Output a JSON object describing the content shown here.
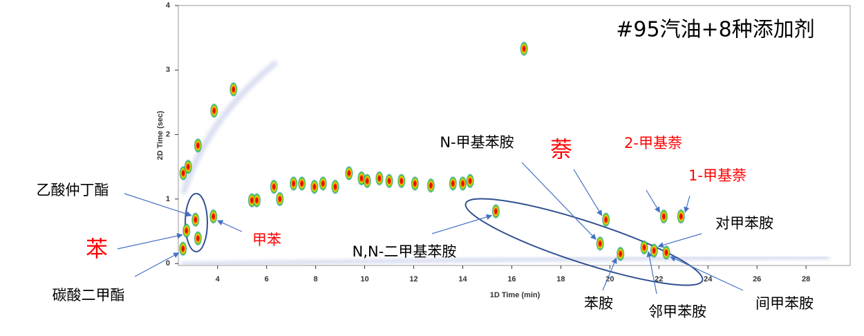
{
  "chart_data": {
    "type": "scatter",
    "title": "#95汽油+8种添加剂",
    "x_label": "1D Time (min)",
    "y_label": "2D Time (sec)",
    "xlim": [
      2.4,
      29.8
    ],
    "ylim": [
      -0.03,
      4
    ],
    "xticks": [
      4,
      6,
      8,
      10,
      12,
      14,
      16,
      18,
      20,
      22,
      24,
      26,
      28
    ],
    "yticks": [
      0,
      1,
      2,
      3,
      4
    ],
    "x": [
      2.6,
      2.8,
      3.2,
      3.86,
      4.65,
      3.2,
      5.4,
      5.6,
      6.54,
      6.3,
      7.1,
      7.44,
      7.95,
      8.3,
      8.8,
      9.36,
      9.87,
      10.1,
      10.6,
      11.0,
      11.5,
      12.05,
      12.7,
      13.6,
      14.0,
      14.3,
      16.5
    ],
    "values": [
      1.4,
      1.5,
      1.83,
      2.37,
      2.7,
      0.39,
      0.98,
      0.98,
      1.0,
      1.19,
      1.24,
      1.24,
      1.19,
      1.24,
      1.19,
      1.4,
      1.32,
      1.28,
      1.32,
      1.28,
      1.28,
      1.24,
      1.21,
      1.24,
      1.24,
      1.28,
      3.33
    ],
    "annotations": [
      {
        "text": "乙酸仲丁酯",
        "x": 3.1,
        "y": 0.68,
        "color": "#000000"
      },
      {
        "text": "苯",
        "x": 2.73,
        "y": 0.51,
        "color": "#ff0000"
      },
      {
        "text": "碳酸二甲酯",
        "x": 2.59,
        "y": 0.23,
        "color": "#000000"
      },
      {
        "text": "甲苯",
        "x": 3.83,
        "y": 0.73,
        "color": "#ff0000"
      },
      {
        "text": "N,N-二甲基苯胺",
        "x": 15.35,
        "y": 0.81,
        "color": "#000000"
      },
      {
        "text": "N-甲基苯胺",
        "x": 19.6,
        "y": 0.31,
        "color": "#000000"
      },
      {
        "text": "萘",
        "x": 19.84,
        "y": 0.68,
        "color": "#ff0000"
      },
      {
        "text": "2-甲基萘",
        "x": 22.2,
        "y": 0.73,
        "color": "#ff0000"
      },
      {
        "text": "1-甲基萘",
        "x": 22.9,
        "y": 0.73,
        "color": "#ff0000"
      },
      {
        "text": "对甲苯胺",
        "x": 21.8,
        "y": 0.2,
        "color": "#000000"
      },
      {
        "text": "苯胺",
        "x": 20.43,
        "y": 0.15,
        "color": "#000000"
      },
      {
        "text": "邻甲苯胺",
        "x": 21.4,
        "y": 0.25,
        "color": "#000000"
      },
      {
        "text": "间甲苯胺",
        "x": 22.3,
        "y": 0.17,
        "color": "#000000"
      }
    ]
  }
}
